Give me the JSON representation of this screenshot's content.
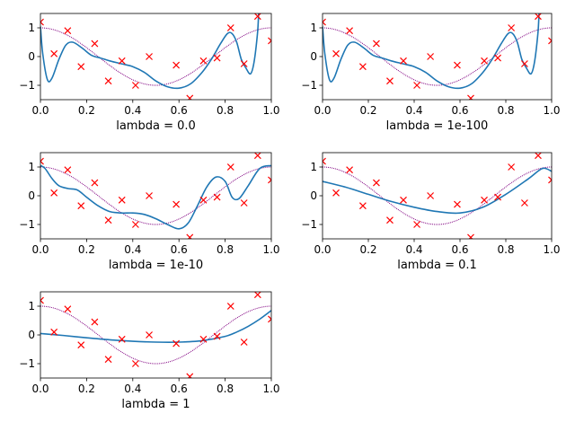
{
  "colors": {
    "fit": "#1f77b4",
    "truth": "#800080",
    "samples": "#ff0000",
    "axis": "#000000",
    "background": "#ffffff"
  },
  "chart_data": [
    {
      "type": "line",
      "xlabel": "lambda = 0.0",
      "xlim": [
        0,
        1
      ],
      "ylim": [
        -1.5,
        1.5
      ],
      "xticks": [
        "0.0",
        "0.2",
        "0.4",
        "0.6",
        "0.8",
        "1.0"
      ],
      "yticks": [
        "-1",
        "0",
        "1"
      ],
      "samples": {
        "x": [
          0,
          0.059,
          0.118,
          0.176,
          0.235,
          0.294,
          0.353,
          0.412,
          0.471,
          0.588,
          0.647,
          0.706,
          0.765,
          0.824,
          0.882,
          0.941,
          1.0
        ],
        "y": [
          1.2,
          0.1,
          0.9,
          -0.35,
          0.45,
          -0.85,
          -0.15,
          -1.0,
          0.0,
          -0.3,
          -1.45,
          -0.15,
          -0.05,
          1.0,
          -0.25,
          1.4,
          0.55
        ]
      },
      "fit": {
        "x": [
          0,
          0.01,
          0.03,
          0.05,
          0.08,
          0.11,
          0.14,
          0.18,
          0.22,
          0.26,
          0.3,
          0.35,
          0.4,
          0.45,
          0.5,
          0.55,
          0.6,
          0.65,
          0.7,
          0.74,
          0.78,
          0.81,
          0.83,
          0.85,
          0.87,
          0.89,
          0.91,
          0.925,
          0.94,
          0.945
        ],
        "y": [
          1.05,
          0.1,
          -0.8,
          -0.75,
          -0.1,
          0.4,
          0.5,
          0.3,
          0.05,
          -0.05,
          -0.15,
          -0.25,
          -0.35,
          -0.55,
          -0.85,
          -1.05,
          -1.1,
          -0.95,
          -0.55,
          -0.1,
          0.45,
          0.8,
          0.8,
          0.5,
          -0.1,
          -0.4,
          -0.6,
          -0.2,
          0.8,
          1.5
        ]
      }
    },
    {
      "type": "line",
      "xlabel": "lambda = 1e-100",
      "xlim": [
        0,
        1
      ],
      "ylim": [
        -1.5,
        1.5
      ],
      "xticks": [
        "0.0",
        "0.2",
        "0.4",
        "0.6",
        "0.8",
        "1.0"
      ],
      "yticks": [
        "-1",
        "0",
        "1"
      ],
      "samples": {
        "x": [
          0,
          0.059,
          0.118,
          0.176,
          0.235,
          0.294,
          0.353,
          0.412,
          0.471,
          0.588,
          0.647,
          0.706,
          0.765,
          0.824,
          0.882,
          0.941,
          1.0
        ],
        "y": [
          1.2,
          0.1,
          0.9,
          -0.35,
          0.45,
          -0.85,
          -0.15,
          -1.0,
          0.0,
          -0.3,
          -1.45,
          -0.15,
          -0.05,
          1.0,
          -0.25,
          1.4,
          0.55
        ]
      },
      "fit": {
        "x": [
          0,
          0.01,
          0.03,
          0.05,
          0.08,
          0.11,
          0.14,
          0.18,
          0.22,
          0.26,
          0.3,
          0.35,
          0.4,
          0.45,
          0.5,
          0.55,
          0.6,
          0.65,
          0.7,
          0.74,
          0.78,
          0.81,
          0.83,
          0.85,
          0.87,
          0.89,
          0.91,
          0.925,
          0.94,
          0.945
        ],
        "y": [
          1.05,
          0.1,
          -0.8,
          -0.75,
          -0.1,
          0.4,
          0.5,
          0.3,
          0.05,
          -0.05,
          -0.15,
          -0.25,
          -0.35,
          -0.55,
          -0.85,
          -1.05,
          -1.1,
          -0.95,
          -0.55,
          -0.1,
          0.45,
          0.8,
          0.8,
          0.5,
          -0.1,
          -0.4,
          -0.6,
          -0.2,
          0.8,
          1.5
        ]
      }
    },
    {
      "type": "line",
      "xlabel": "lambda = 1e-10",
      "xlim": [
        0,
        1
      ],
      "ylim": [
        -1.5,
        1.5
      ],
      "xticks": [
        "0.0",
        "0.2",
        "0.4",
        "0.6",
        "0.8",
        "1.0"
      ],
      "yticks": [
        "-1",
        "0",
        "1"
      ],
      "samples": {
        "x": [
          0,
          0.059,
          0.118,
          0.176,
          0.235,
          0.294,
          0.353,
          0.412,
          0.471,
          0.588,
          0.647,
          0.706,
          0.765,
          0.824,
          0.882,
          0.941,
          1.0
        ],
        "y": [
          1.2,
          0.1,
          0.9,
          -0.35,
          0.45,
          -0.85,
          -0.15,
          -1.0,
          0.0,
          -0.3,
          -1.45,
          -0.15,
          -0.05,
          1.0,
          -0.25,
          1.4,
          0.55
        ]
      },
      "fit": {
        "x": [
          0,
          0.02,
          0.05,
          0.08,
          0.12,
          0.16,
          0.2,
          0.25,
          0.3,
          0.35,
          0.4,
          0.45,
          0.5,
          0.55,
          0.6,
          0.64,
          0.68,
          0.72,
          0.76,
          0.8,
          0.83,
          0.86,
          0.9,
          0.95,
          1.0
        ],
        "y": [
          1.05,
          0.95,
          0.6,
          0.35,
          0.25,
          0.2,
          -0.05,
          -0.35,
          -0.55,
          -0.6,
          -0.6,
          -0.65,
          -0.8,
          -1.0,
          -1.15,
          -0.95,
          -0.35,
          0.3,
          0.65,
          0.5,
          -0.05,
          -0.1,
          0.35,
          0.95,
          1.05
        ]
      }
    },
    {
      "type": "line",
      "xlabel": "lambda = 0.1",
      "xlim": [
        0,
        1
      ],
      "ylim": [
        -1.5,
        1.5
      ],
      "xticks": [
        "0.0",
        "0.2",
        "0.4",
        "0.6",
        "0.8",
        "1.0"
      ],
      "yticks": [
        "-1",
        "0",
        "1"
      ],
      "samples": {
        "x": [
          0,
          0.059,
          0.118,
          0.176,
          0.235,
          0.294,
          0.353,
          0.412,
          0.471,
          0.588,
          0.647,
          0.706,
          0.765,
          0.824,
          0.882,
          0.941,
          1.0
        ],
        "y": [
          1.2,
          0.1,
          0.9,
          -0.35,
          0.45,
          -0.85,
          -0.15,
          -1.0,
          0.0,
          -0.3,
          -1.45,
          -0.15,
          -0.05,
          1.0,
          -0.25,
          1.4,
          0.55
        ]
      },
      "fit": {
        "x": [
          0,
          0.1,
          0.2,
          0.3,
          0.4,
          0.5,
          0.6,
          0.7,
          0.8,
          0.9,
          0.96,
          1.0
        ],
        "y": [
          0.5,
          0.3,
          0.05,
          -0.2,
          -0.4,
          -0.55,
          -0.6,
          -0.4,
          0.05,
          0.6,
          0.95,
          0.85
        ]
      }
    },
    {
      "type": "line",
      "xlabel": "lambda = 1",
      "xlim": [
        0,
        1
      ],
      "ylim": [
        -1.5,
        1.5
      ],
      "xticks": [
        "0.0",
        "0.2",
        "0.4",
        "0.6",
        "0.8",
        "1.0"
      ],
      "yticks": [
        "-1",
        "0",
        "1"
      ],
      "samples": {
        "x": [
          0,
          0.059,
          0.118,
          0.176,
          0.235,
          0.294,
          0.353,
          0.412,
          0.471,
          0.588,
          0.647,
          0.706,
          0.765,
          0.824,
          0.882,
          0.941,
          1.0
        ],
        "y": [
          1.2,
          0.1,
          0.9,
          -0.35,
          0.45,
          -0.85,
          -0.15,
          -1.0,
          0.0,
          -0.3,
          -1.45,
          -0.15,
          -0.05,
          1.0,
          -0.25,
          1.4,
          0.55
        ]
      },
      "fit": {
        "x": [
          0,
          0.1,
          0.2,
          0.3,
          0.4,
          0.5,
          0.6,
          0.7,
          0.8,
          0.85,
          0.9,
          0.95,
          1.0
        ],
        "y": [
          0.05,
          -0.02,
          -0.1,
          -0.17,
          -0.22,
          -0.25,
          -0.25,
          -0.2,
          -0.05,
          0.1,
          0.3,
          0.55,
          0.85
        ]
      }
    }
  ]
}
